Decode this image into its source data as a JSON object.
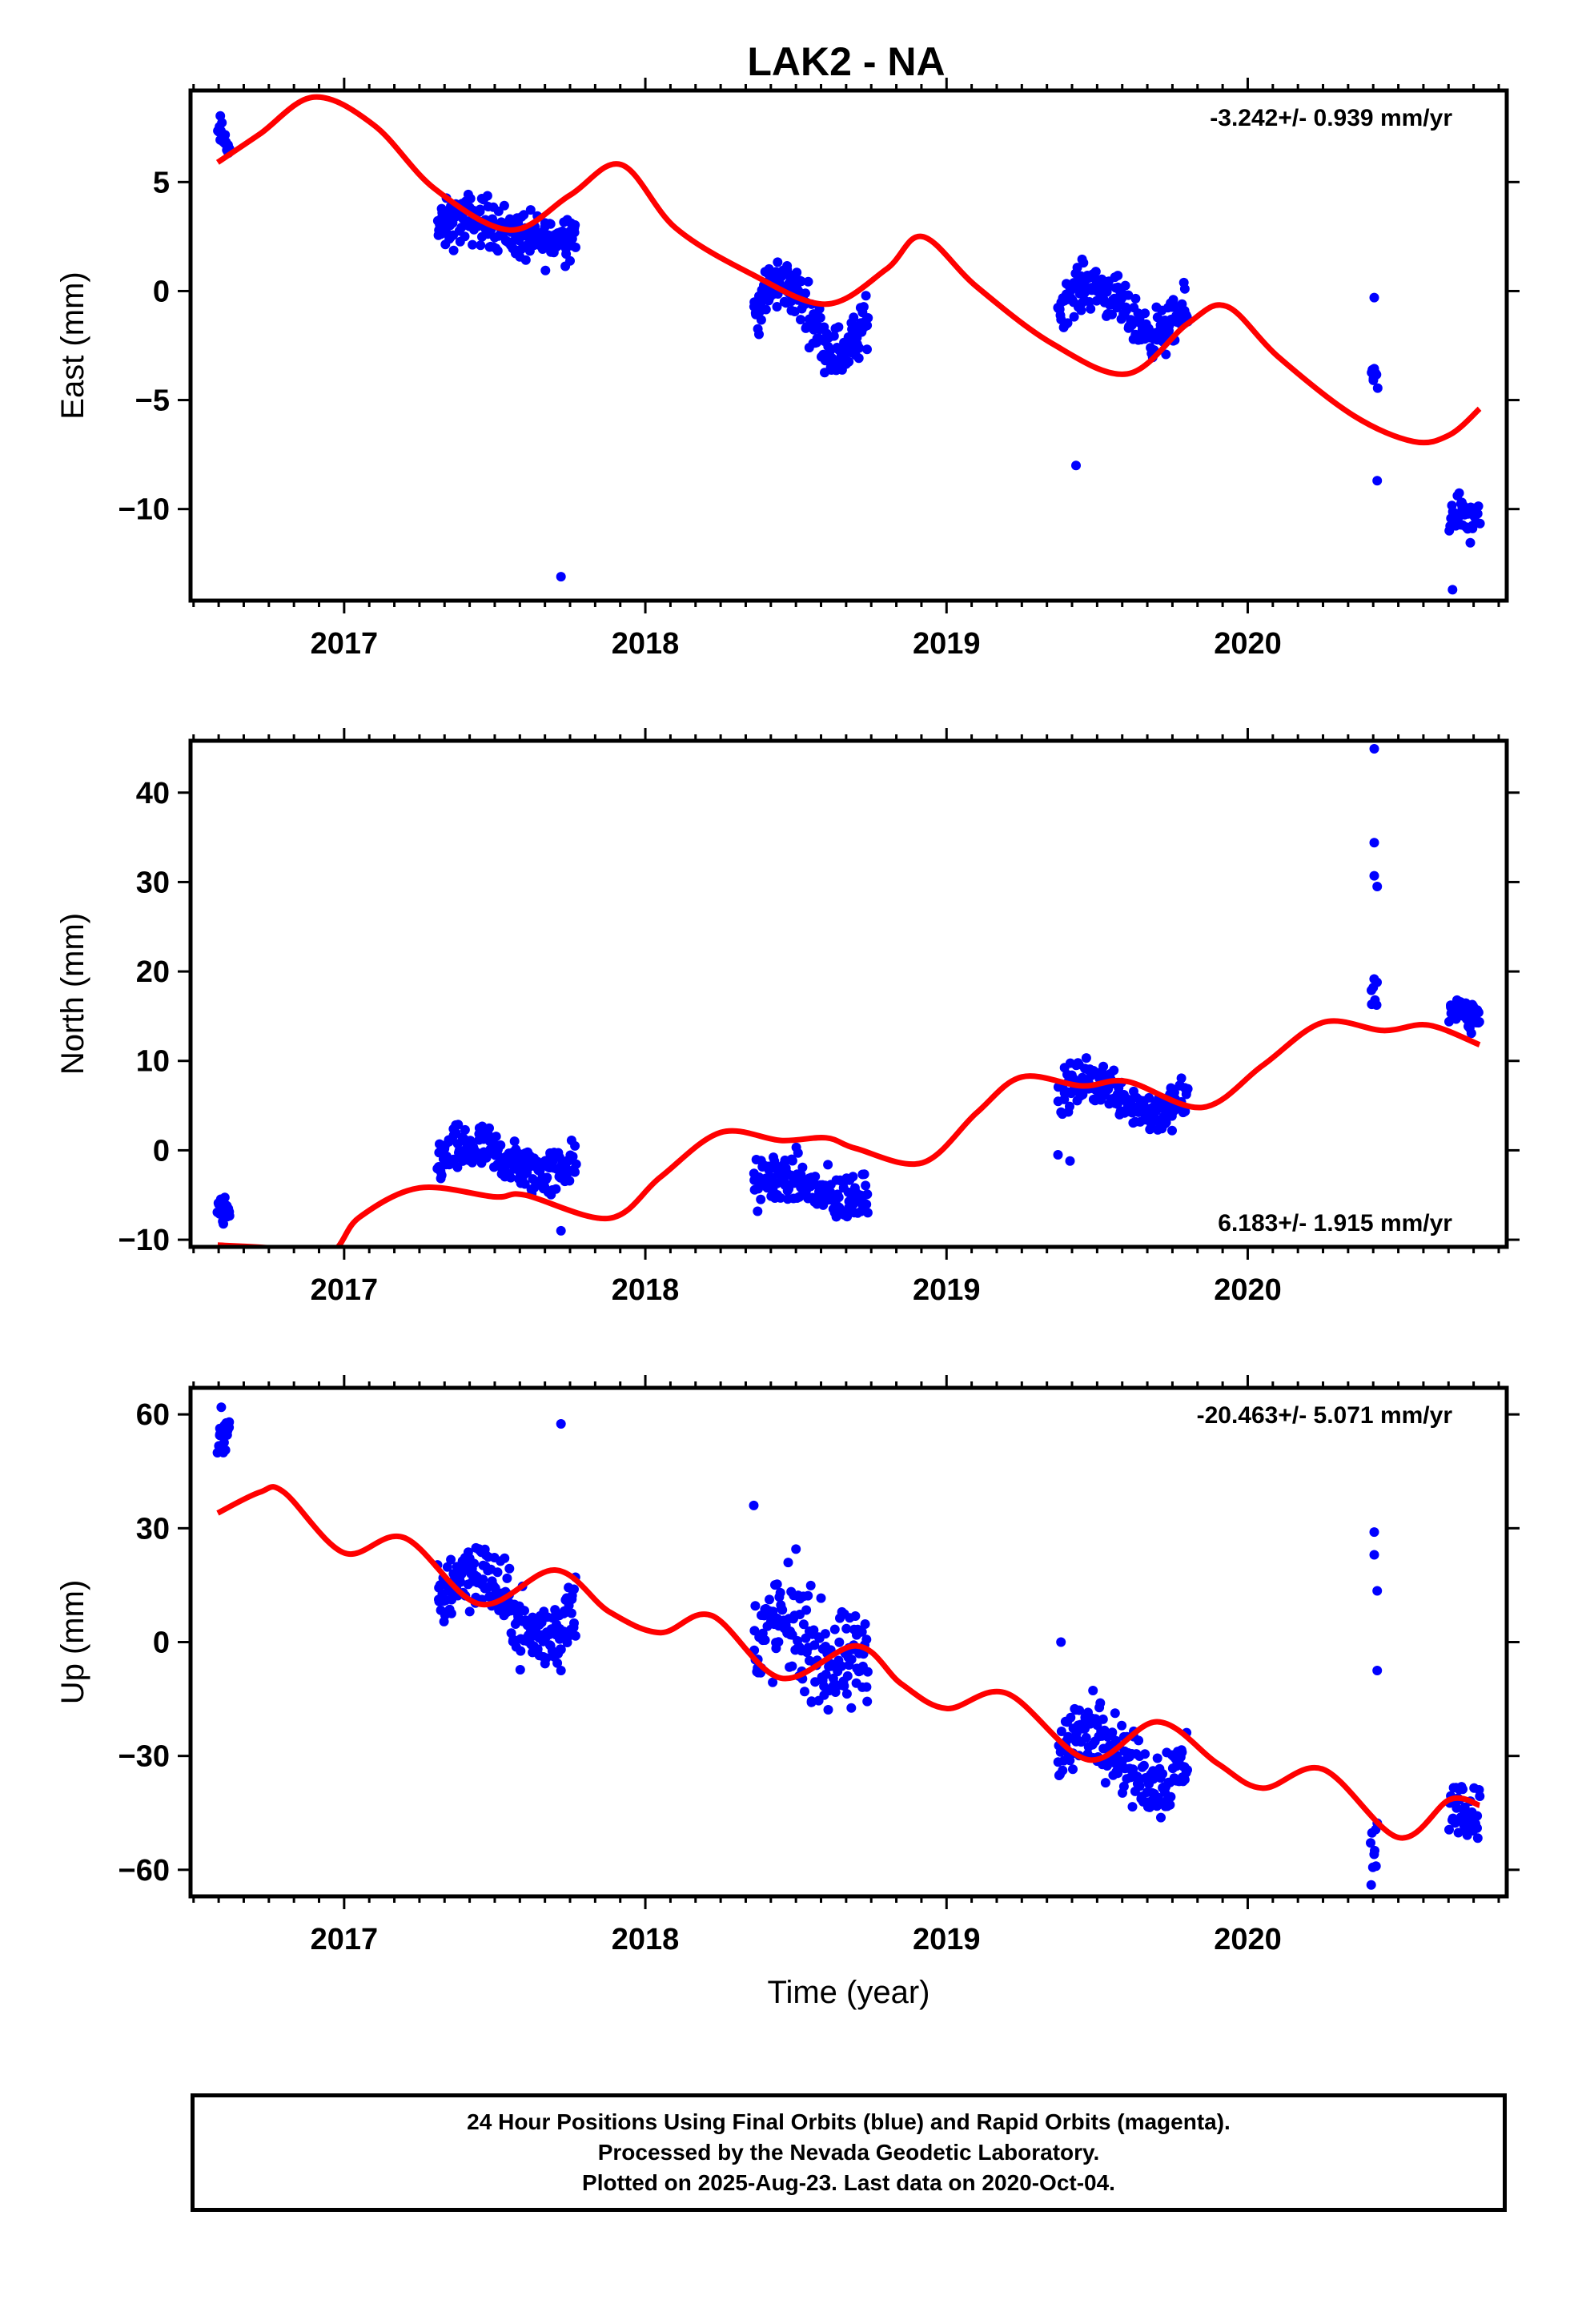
{
  "title": "LAK2 - NA",
  "colors": {
    "data": "#0000ff",
    "model": "#ff0000",
    "axis": "#000000",
    "background": "#ffffff"
  },
  "footer": {
    "line1": "24 Hour Positions Using Final Orbits (blue) and Rapid Orbits (magenta).",
    "line2": "Processed by the Nevada Geodetic Laboratory.",
    "line3": "Plotted on 2025-Aug-23. Last data on 2020-Oct-04."
  },
  "chart_data": [
    {
      "type": "scatter",
      "component": "east",
      "ylabel": "East (mm)",
      "xlabel": "",
      "xlim": [
        2016.49,
        2020.86
      ],
      "ylim": [
        -14.2,
        9.2
      ],
      "xticks": [
        2017,
        2018,
        2019,
        2020
      ],
      "xtick_labels": [
        "2017",
        "2018",
        "2019",
        "2020"
      ],
      "yticks": [
        -10,
        -5,
        0,
        5
      ],
      "ytick_labels": [
        "−10",
        "−5",
        "0",
        "5"
      ],
      "rate_label": "-3.242+/- 0.939 mm/yr",
      "rate_position": "top-right",
      "rate": -3.242,
      "rate_sigma": 0.939,
      "observations": {
        "segments": [
          {
            "x": [
              2016.58,
              2016.62
            ],
            "center": 7.0,
            "amp": 0.3,
            "spread": 1.1
          },
          {
            "x": [
              2017.31,
              2017.77
            ],
            "center": 2.8,
            "amp": 0.5,
            "spread": 1.7
          },
          {
            "x": [
              2018.36,
              2018.74
            ],
            "center": -1.2,
            "amp": 1.6,
            "spread": 1.8
          },
          {
            "x": [
              2019.37,
              2019.8
            ],
            "center": -0.8,
            "amp": 1.1,
            "spread": 1.6
          },
          {
            "x": [
              2020.41,
              2020.43
            ],
            "center": -4.0,
            "amp": 0.0,
            "spread": 1.6
          },
          {
            "x": [
              2020.67,
              2020.77
            ],
            "center": -10.4,
            "amp": 0.3,
            "spread": 1.4
          }
        ],
        "outliers": [
          [
            2017.72,
            -13.1
          ],
          [
            2019.43,
            -8.0
          ],
          [
            2020.42,
            -0.3
          ],
          [
            2020.43,
            -8.7
          ],
          [
            2020.68,
            -13.7
          ]
        ]
      },
      "model": {
        "x": [
          2016.58,
          2016.72,
          2016.9,
          2017.1,
          2017.3,
          2017.55,
          2017.75,
          2017.92,
          2018.1,
          2018.35,
          2018.6,
          2018.8,
          2018.92,
          2019.1,
          2019.35,
          2019.6,
          2019.8,
          2019.93,
          2020.1,
          2020.35,
          2020.55,
          2020.67,
          2020.77
        ],
        "y": [
          5.9,
          7.2,
          8.9,
          7.6,
          4.7,
          2.8,
          4.4,
          5.8,
          2.9,
          0.8,
          -0.6,
          1.0,
          2.5,
          0.2,
          -2.4,
          -3.8,
          -1.5,
          -0.7,
          -3.0,
          -5.7,
          -6.9,
          -6.6,
          -5.4
        ]
      }
    },
    {
      "type": "scatter",
      "component": "north",
      "ylabel": "North (mm)",
      "xlabel": "",
      "xlim": [
        2016.49,
        2020.86
      ],
      "ylim": [
        -10.8,
        45.8
      ],
      "xticks": [
        2017,
        2018,
        2019,
        2020
      ],
      "xtick_labels": [
        "2017",
        "2018",
        "2019",
        "2020"
      ],
      "yticks": [
        -10,
        0,
        10,
        20,
        30,
        40
      ],
      "ytick_labels": [
        "−10",
        "0",
        "10",
        "20",
        "30",
        "40"
      ],
      "rate_label": "6.183+/- 1.915 mm/yr",
      "rate_position": "bottom-right",
      "rate": 6.183,
      "rate_sigma": 1.915,
      "observations": {
        "segments": [
          {
            "x": [
              2016.58,
              2016.62
            ],
            "center": -7.0,
            "amp": 0.3,
            "spread": 2.5
          },
          {
            "x": [
              2017.31,
              2017.77
            ],
            "center": -1.2,
            "amp": 1.4,
            "spread": 4.0
          },
          {
            "x": [
              2018.36,
              2018.74
            ],
            "center": -4.2,
            "amp": 1.2,
            "spread": 4.2
          },
          {
            "x": [
              2019.37,
              2019.8
            ],
            "center": 6.0,
            "amp": 1.8,
            "spread": 3.6
          },
          {
            "x": [
              2020.41,
              2020.43
            ],
            "center": 17.5,
            "amp": 0.0,
            "spread": 4.5
          },
          {
            "x": [
              2020.67,
              2020.77
            ],
            "center": 15.2,
            "amp": 0.5,
            "spread": 2.5
          }
        ],
        "outliers": [
          [
            2020.42,
            44.9
          ],
          [
            2020.42,
            34.4
          ],
          [
            2020.42,
            30.7
          ],
          [
            2020.43,
            29.5
          ],
          [
            2019.37,
            -0.5
          ],
          [
            2019.41,
            -1.2
          ],
          [
            2017.72,
            -9.0
          ]
        ]
      },
      "model": {
        "x": [
          2016.58,
          2016.75,
          2016.95,
          2017.05,
          2017.25,
          2017.5,
          2017.6,
          2017.88,
          2018.05,
          2018.25,
          2018.45,
          2018.6,
          2018.7,
          2018.92,
          2019.1,
          2019.25,
          2019.45,
          2019.6,
          2019.85,
          2020.05,
          2020.25,
          2020.45,
          2020.6,
          2020.77
        ],
        "y": [
          -10.6,
          -10.9,
          -11.5,
          -7.5,
          -4.2,
          -5.2,
          -5.0,
          -7.6,
          -3.0,
          2.0,
          1.1,
          1.4,
          0.2,
          -1.4,
          4.2,
          8.2,
          7.2,
          7.7,
          4.8,
          9.5,
          14.3,
          13.4,
          14.0,
          11.8
        ]
      }
    },
    {
      "type": "scatter",
      "component": "up",
      "ylabel": "Up (mm)",
      "xlabel": "Time (year)",
      "xlim": [
        2016.49,
        2020.86
      ],
      "ylim": [
        -67,
        67
      ],
      "xticks": [
        2017,
        2018,
        2019,
        2020
      ],
      "xtick_labels": [
        "2017",
        "2018",
        "2019",
        "2020"
      ],
      "yticks": [
        -60,
        -30,
        0,
        30,
        60
      ],
      "ytick_labels": [
        "−60",
        "−30",
        "0",
        "30",
        "60"
      ],
      "rate_label": "-20.463+/- 5.071 mm/yr",
      "rate_position": "top-right",
      "rate": -20.463,
      "rate_sigma": 5.071,
      "observations": {
        "segments": [
          {
            "x": [
              2016.58,
              2016.62
            ],
            "center": 55.0,
            "amp": 1.0,
            "spread": 10.0
          },
          {
            "x": [
              2017.31,
              2017.77
            ],
            "center": 10.0,
            "amp": 9.0,
            "spread": 14.0
          },
          {
            "x": [
              2018.36,
              2018.74
            ],
            "center": -1.0,
            "amp": 6.0,
            "spread": 20.0
          },
          {
            "x": [
              2019.37,
              2019.8
            ],
            "center": -30.0,
            "amp": 7.0,
            "spread": 14.0
          },
          {
            "x": [
              2020.41,
              2020.43
            ],
            "center": -55.0,
            "amp": 0.0,
            "spread": 14.0
          },
          {
            "x": [
              2020.67,
              2020.77
            ],
            "center": -44.0,
            "amp": 1.5,
            "spread": 10.0
          }
        ],
        "outliers": [
          [
            2017.72,
            57.5
          ],
          [
            2018.36,
            36.0
          ],
          [
            2018.5,
            24.5
          ],
          [
            2019.38,
            0.0
          ],
          [
            2020.42,
            29.0
          ],
          [
            2020.42,
            23.0
          ],
          [
            2020.43,
            13.5
          ],
          [
            2020.43,
            -7.5
          ],
          [
            2020.41,
            -64.0
          ],
          [
            2017.72,
            -7.5
          ]
        ]
      },
      "model": {
        "x": [
          2016.58,
          2016.72,
          2016.8,
          2017.0,
          2017.2,
          2017.45,
          2017.7,
          2017.88,
          2018.05,
          2018.22,
          2018.45,
          2018.7,
          2018.85,
          2019.0,
          2019.2,
          2019.47,
          2019.7,
          2019.9,
          2020.05,
          2020.25,
          2020.5,
          2020.67,
          2020.77
        ],
        "y": [
          34.0,
          39.5,
          39.5,
          23.5,
          27.5,
          10.0,
          19.0,
          8.0,
          2.5,
          7.0,
          -9.5,
          -1.0,
          -11.0,
          -17.5,
          -13.5,
          -31.0,
          -21.0,
          -32.0,
          -38.5,
          -33.5,
          -51.5,
          -41.5,
          -43.0
        ]
      }
    }
  ]
}
